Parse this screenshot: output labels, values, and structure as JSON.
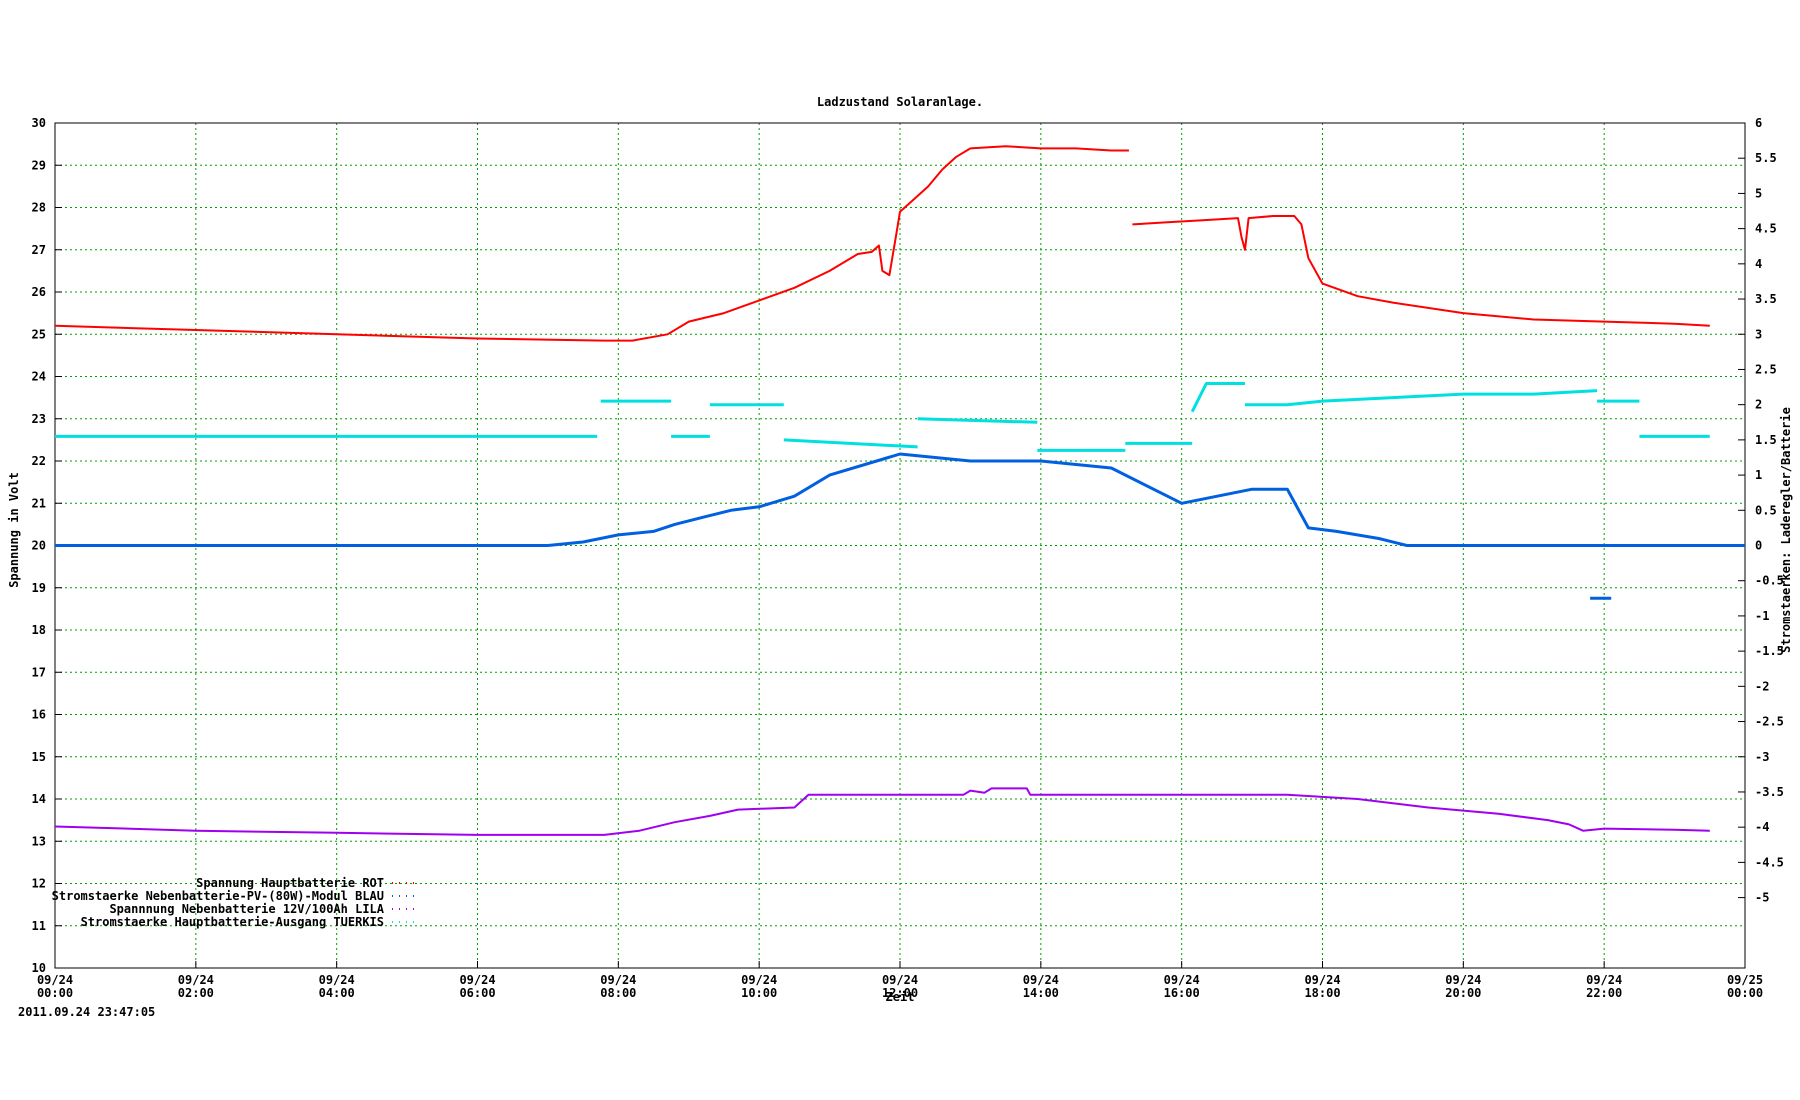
{
  "chart_data": {
    "type": "line",
    "title": "Ladzustand Solaranlage.",
    "xlabel": "Zeit",
    "ylabel": "Spannung in Volt",
    "y2label": "Stromstaerken: Laderegler/Batterie",
    "timestamp": "2011.09.24 23:47:05",
    "xlim": [
      0,
      24
    ],
    "ylim": [
      10,
      30
    ],
    "y2lim": [
      -6,
      6
    ],
    "grid": true,
    "legend_position": "bottom-left",
    "x_ticks": [
      {
        "hour": 0,
        "date": "09/24",
        "time": "00:00"
      },
      {
        "hour": 2,
        "date": "09/24",
        "time": "02:00"
      },
      {
        "hour": 4,
        "date": "09/24",
        "time": "04:00"
      },
      {
        "hour": 6,
        "date": "09/24",
        "time": "06:00"
      },
      {
        "hour": 8,
        "date": "09/24",
        "time": "08:00"
      },
      {
        "hour": 10,
        "date": "09/24",
        "time": "10:00"
      },
      {
        "hour": 12,
        "date": "09/24",
        "time": "12:00"
      },
      {
        "hour": 14,
        "date": "09/24",
        "time": "14:00"
      },
      {
        "hour": 16,
        "date": "09/24",
        "time": "16:00"
      },
      {
        "hour": 18,
        "date": "09/24",
        "time": "18:00"
      },
      {
        "hour": 20,
        "date": "09/24",
        "time": "20:00"
      },
      {
        "hour": 22,
        "date": "09/24",
        "time": "22:00"
      },
      {
        "hour": 24,
        "date": "09/25",
        "time": "00:00"
      }
    ],
    "y_ticks": [
      10,
      11,
      12,
      13,
      14,
      15,
      16,
      17,
      18,
      19,
      20,
      21,
      22,
      23,
      24,
      25,
      26,
      27,
      28,
      29,
      30
    ],
    "y2_ticks": [
      {
        "value": 6,
        "label": "6"
      },
      {
        "value": 5.5,
        "label": "5.5"
      },
      {
        "value": 5,
        "label": "5"
      },
      {
        "value": 4.5,
        "label": "4.5"
      },
      {
        "value": 4,
        "label": "4"
      },
      {
        "value": 3.5,
        "label": "3.5"
      },
      {
        "value": 3,
        "label": "3"
      },
      {
        "value": 2.5,
        "label": "2.5"
      },
      {
        "value": 2,
        "label": "2"
      },
      {
        "value": 1.5,
        "label": "1.5"
      },
      {
        "value": 1,
        "label": "1"
      },
      {
        "value": 0.5,
        "label": "0.5"
      },
      {
        "value": 0,
        "label": "0"
      },
      {
        "value": -0.5,
        "label": "-0.5"
      },
      {
        "value": -1,
        "label": "-1"
      },
      {
        "value": -1.5,
        "label": "-1.5"
      },
      {
        "value": -2,
        "label": "-2"
      },
      {
        "value": -2.5,
        "label": "-2.5"
      },
      {
        "value": -3,
        "label": "-3"
      },
      {
        "value": -3.5,
        "label": "-3.5"
      },
      {
        "value": -4,
        "label": "-4"
      },
      {
        "value": -4.5,
        "label": "-4.5"
      },
      {
        "value": -5,
        "label": "-5"
      }
    ],
    "series": [
      {
        "name": "Spannung Hauptbatterie ROT",
        "color": "#ff0000",
        "axis": "y",
        "segments": [
          [
            [
              0,
              25.2
            ],
            [
              2,
              25.1
            ],
            [
              4,
              25.0
            ],
            [
              6,
              24.9
            ],
            [
              7.8,
              24.85
            ],
            [
              8.2,
              24.85
            ],
            [
              8.7,
              25.0
            ],
            [
              9.0,
              25.3
            ],
            [
              9.5,
              25.5
            ],
            [
              10.0,
              25.8
            ],
            [
              10.5,
              26.1
            ],
            [
              11.0,
              26.5
            ],
            [
              11.4,
              26.9
            ],
            [
              11.6,
              26.95
            ],
            [
              11.7,
              27.1
            ],
            [
              11.75,
              26.5
            ],
            [
              11.85,
              26.4
            ],
            [
              11.95,
              27.4
            ],
            [
              12.0,
              27.9
            ],
            [
              12.2,
              28.2
            ],
            [
              12.4,
              28.5
            ],
            [
              12.6,
              28.9
            ],
            [
              12.8,
              29.2
            ],
            [
              13.0,
              29.4
            ],
            [
              13.5,
              29.45
            ],
            [
              14.0,
              29.4
            ],
            [
              14.5,
              29.4
            ],
            [
              15.0,
              29.35
            ],
            [
              15.25,
              29.35
            ]
          ],
          [
            [
              15.3,
              27.6
            ],
            [
              15.8,
              27.65
            ],
            [
              16.3,
              27.7
            ],
            [
              16.8,
              27.75
            ],
            [
              16.85,
              27.3
            ],
            [
              16.9,
              27.0
            ],
            [
              16.95,
              27.75
            ],
            [
              17.3,
              27.8
            ],
            [
              17.6,
              27.8
            ],
            [
              17.7,
              27.6
            ],
            [
              17.8,
              26.8
            ],
            [
              18.0,
              26.2
            ],
            [
              18.5,
              25.9
            ],
            [
              19.0,
              25.75
            ],
            [
              20.0,
              25.5
            ],
            [
              21.0,
              25.35
            ],
            [
              22.0,
              25.3
            ],
            [
              23.0,
              25.25
            ],
            [
              23.5,
              25.2
            ]
          ]
        ]
      },
      {
        "name": "Stromstaerke Nebenbatterie-PV-(80W)-Modul BLAU",
        "color": "#0060e0",
        "axis": "y2",
        "segments": [
          [
            [
              0,
              0
            ],
            [
              7.0,
              0
            ],
            [
              7.5,
              0.05
            ],
            [
              8.0,
              0.15
            ],
            [
              8.5,
              0.2
            ],
            [
              8.8,
              0.3
            ],
            [
              9.2,
              0.4
            ],
            [
              9.6,
              0.5
            ],
            [
              10.0,
              0.55
            ],
            [
              10.5,
              0.7
            ],
            [
              11.0,
              1.0
            ],
            [
              12.0,
              1.3
            ],
            [
              13.0,
              1.2
            ],
            [
              14.0,
              1.2
            ],
            [
              15.0,
              1.1
            ],
            [
              16.0,
              0.6
            ],
            [
              17.0,
              0.8
            ],
            [
              17.5,
              0.8
            ],
            [
              17.8,
              0.25
            ],
            [
              18.2,
              0.2
            ],
            [
              18.8,
              0.1
            ],
            [
              19.2,
              0.0
            ],
            [
              24.0,
              0
            ]
          ],
          [
            [
              21.8,
              -0.75
            ],
            [
              22.1,
              -0.75
            ]
          ]
        ]
      },
      {
        "name": "Spannnung Nebenbatterie 12V/100Ah LILA",
        "color": "#a000f0",
        "axis": "y",
        "segments": [
          [
            [
              0,
              13.35
            ],
            [
              2,
              13.25
            ],
            [
              4,
              13.2
            ],
            [
              6,
              13.15
            ],
            [
              7.8,
              13.15
            ],
            [
              8.3,
              13.25
            ],
            [
              8.8,
              13.45
            ],
            [
              9.3,
              13.6
            ],
            [
              9.7,
              13.75
            ],
            [
              10.5,
              13.8
            ],
            [
              10.7,
              14.1
            ],
            [
              11.5,
              14.1
            ],
            [
              12.0,
              14.1
            ],
            [
              12.9,
              14.1
            ],
            [
              13.0,
              14.2
            ],
            [
              13.2,
              14.15
            ],
            [
              13.3,
              14.25
            ],
            [
              13.8,
              14.25
            ],
            [
              13.85,
              14.1
            ],
            [
              15.0,
              14.1
            ],
            [
              16.0,
              14.1
            ],
            [
              17.0,
              14.1
            ],
            [
              17.5,
              14.1
            ],
            [
              18.0,
              14.05
            ],
            [
              18.5,
              14.0
            ],
            [
              19.5,
              13.8
            ],
            [
              20.5,
              13.65
            ],
            [
              21.2,
              13.5
            ],
            [
              21.5,
              13.4
            ],
            [
              21.7,
              13.25
            ],
            [
              22.0,
              13.3
            ],
            [
              23.0,
              13.27
            ],
            [
              23.5,
              13.25
            ]
          ]
        ]
      },
      {
        "name": "Stromstaerke Hauptbatterie-Ausgang TUERKIS",
        "color": "#00e0e0",
        "axis": "y2",
        "segments": [
          [
            [
              0,
              1.55
            ],
            [
              7.7,
              1.55
            ]
          ],
          [
            [
              7.75,
              2.05
            ],
            [
              8.75,
              2.05
            ]
          ],
          [
            [
              8.75,
              1.55
            ],
            [
              9.3,
              1.55
            ]
          ],
          [
            [
              9.3,
              2.0
            ],
            [
              10.35,
              2.0
            ]
          ],
          [
            [
              10.35,
              1.5
            ],
            [
              12.25,
              1.4
            ]
          ],
          [
            [
              12.25,
              1.8
            ],
            [
              13.95,
              1.75
            ]
          ],
          [
            [
              13.95,
              1.35
            ],
            [
              15.2,
              1.35
            ]
          ],
          [
            [
              15.2,
              1.45
            ],
            [
              16.15,
              1.45
            ]
          ],
          [
            [
              16.15,
              1.9
            ],
            [
              16.35,
              2.3
            ],
            [
              16.9,
              2.3
            ]
          ],
          [
            [
              16.9,
              2.0
            ],
            [
              17.5,
              2.0
            ],
            [
              18.0,
              2.05
            ],
            [
              19.0,
              2.1
            ],
            [
              20.0,
              2.15
            ],
            [
              21.0,
              2.15
            ],
            [
              21.9,
              2.2
            ]
          ],
          [
            [
              21.9,
              2.05
            ],
            [
              22.5,
              2.05
            ]
          ],
          [
            [
              22.5,
              1.55
            ],
            [
              23.5,
              1.55
            ]
          ]
        ]
      }
    ]
  }
}
